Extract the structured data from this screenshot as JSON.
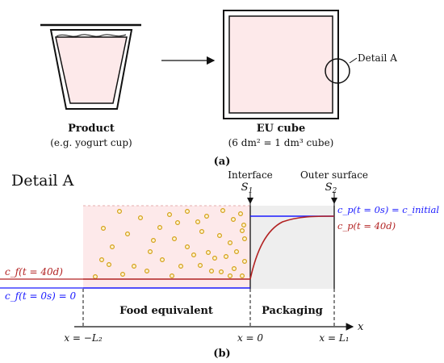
{
  "panel_a": {
    "product_title": "Product",
    "product_subtitle": "(e.g. yogurt cup)",
    "cube_title": "EU cube",
    "cube_subtitle": "(6 dm² = 1 dm³ cube)",
    "detail_label": "Detail A",
    "panel_label": "(a)"
  },
  "panel_b": {
    "title": "Detail A",
    "interface_label": "Interface",
    "s1_label": "S",
    "s1_sub": "1",
    "outer_surface_label": "Outer surface",
    "s2_label": "S",
    "s2_sub": "2",
    "cf_40d": "c_f(t = 40d)",
    "cf_0": "c_f(t = 0s) = 0",
    "cp_0": "c_p(t = 0s) = c_initial",
    "cp_40d": "c_p(t = 40d)",
    "food_label": "Food equivalent",
    "packaging_label": "Packaging",
    "x_axis_label": "x",
    "x_left": "x = −L₂",
    "x_mid": "x = 0",
    "x_right": "x = L₁",
    "panel_label": "(b)",
    "colors": {
      "food_fill": "#fde9ea",
      "packaging_fill": "#eeeeee",
      "initial_line": "#1a1aff",
      "final_line": "#b22222",
      "particle": "#d4a017"
    }
  }
}
